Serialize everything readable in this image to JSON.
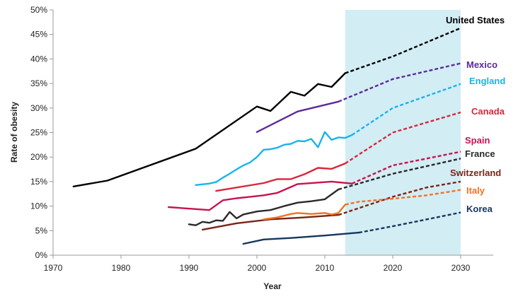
{
  "chart_data": {
    "type": "line",
    "xlabel": "Year",
    "ylabel": "Rate of obesity",
    "xlim": [
      1970,
      2035
    ],
    "ylim": [
      0,
      50
    ],
    "x_ticks": [
      1970,
      1980,
      1990,
      2000,
      2010,
      2020,
      2030
    ],
    "y_ticks": [
      0,
      5,
      10,
      15,
      20,
      25,
      30,
      35,
      40,
      45,
      50
    ],
    "y_tick_labels": [
      "0%",
      "5%",
      "10%",
      "15%",
      "20%",
      "25%",
      "30%",
      "35%",
      "40%",
      "45%",
      "50%"
    ],
    "projection_region": {
      "from": 2013,
      "to": 2030,
      "color": "#d3edf4"
    },
    "grid": false,
    "series": [
      {
        "name": "United States",
        "color": "#000000",
        "actual": [
          [
            1973,
            14.0
          ],
          [
            1978,
            15.2
          ],
          [
            1991,
            21.7
          ],
          [
            2000,
            30.3
          ],
          [
            2002,
            29.4
          ],
          [
            2005,
            33.3
          ],
          [
            2007,
            32.5
          ],
          [
            2009,
            34.9
          ],
          [
            2011,
            34.3
          ],
          [
            2013,
            37.1
          ]
        ],
        "projected": [
          [
            2013,
            37.1
          ],
          [
            2020,
            40.5
          ],
          [
            2030,
            46.3
          ]
        ]
      },
      {
        "name": "Mexico",
        "color": "#5b2a9d",
        "actual": [
          [
            2000,
            25.1
          ],
          [
            2006,
            29.3
          ],
          [
            2012,
            31.3
          ]
        ],
        "projected": [
          [
            2012,
            31.3
          ],
          [
            2020,
            35.9
          ],
          [
            2030,
            39.1
          ]
        ]
      },
      {
        "name": "England",
        "color": "#19b4ea",
        "actual": [
          [
            1991,
            14.3
          ],
          [
            1993,
            14.6
          ],
          [
            1994,
            14.9
          ],
          [
            1995,
            15.8
          ],
          [
            1996,
            16.6
          ],
          [
            1997,
            17.5
          ],
          [
            1998,
            18.3
          ],
          [
            1999,
            18.9
          ],
          [
            2000,
            20.0
          ],
          [
            2001,
            21.5
          ],
          [
            2002,
            21.6
          ],
          [
            2003,
            21.9
          ],
          [
            2004,
            22.5
          ],
          [
            2005,
            22.7
          ],
          [
            2006,
            23.3
          ],
          [
            2007,
            23.2
          ],
          [
            2008,
            23.7
          ],
          [
            2009,
            22.0
          ],
          [
            2010,
            25.1
          ],
          [
            2011,
            23.5
          ],
          [
            2012,
            24.0
          ],
          [
            2013,
            23.9
          ],
          [
            2014,
            24.5
          ]
        ],
        "projected": [
          [
            2014,
            24.5
          ],
          [
            2020,
            30.0
          ],
          [
            2030,
            34.9
          ]
        ]
      },
      {
        "name": "Canada",
        "color": "#d7273b",
        "actual": [
          [
            1994,
            13.1
          ],
          [
            2001,
            14.7
          ],
          [
            2003,
            15.5
          ],
          [
            2005,
            15.5
          ],
          [
            2007,
            16.5
          ],
          [
            2009,
            17.8
          ],
          [
            2011,
            17.6
          ],
          [
            2013,
            18.7
          ]
        ],
        "projected": [
          [
            2013,
            18.7
          ],
          [
            2020,
            25.0
          ],
          [
            2030,
            29.1
          ]
        ]
      },
      {
        "name": "Spain",
        "color": "#c8124f",
        "actual": [
          [
            1987,
            9.8
          ],
          [
            1993,
            9.2
          ],
          [
            1995,
            11.2
          ],
          [
            1997,
            11.6
          ],
          [
            1999,
            11.9
          ],
          [
            2001,
            12.2
          ],
          [
            2003,
            12.7
          ],
          [
            2006,
            14.5
          ],
          [
            2009,
            14.8
          ],
          [
            2011,
            15.0
          ],
          [
            2014,
            14.6
          ]
        ],
        "projected": [
          [
            2014,
            14.6
          ],
          [
            2020,
            18.3
          ],
          [
            2030,
            21.1
          ]
        ]
      },
      {
        "name": "France",
        "color": "#2a2a2a",
        "actual": [
          [
            1990,
            6.3
          ],
          [
            1991,
            6.1
          ],
          [
            1992,
            6.8
          ],
          [
            1993,
            6.6
          ],
          [
            1994,
            7.1
          ],
          [
            1995,
            7.0
          ],
          [
            1996,
            8.8
          ],
          [
            1997,
            7.5
          ],
          [
            1998,
            8.3
          ],
          [
            2000,
            8.9
          ],
          [
            2002,
            9.2
          ],
          [
            2004,
            10.0
          ],
          [
            2006,
            10.7
          ],
          [
            2008,
            11.0
          ],
          [
            2010,
            11.4
          ],
          [
            2012,
            13.4
          ]
        ],
        "projected": [
          [
            2012,
            13.4
          ],
          [
            2020,
            16.6
          ],
          [
            2030,
            19.7
          ]
        ]
      },
      {
        "name": "Switzerland",
        "color": "#7b2418",
        "actual": [
          [
            1992,
            5.2
          ],
          [
            1997,
            6.5
          ],
          [
            2002,
            7.3
          ],
          [
            2007,
            7.7
          ],
          [
            2012,
            8.2
          ]
        ],
        "projected": [
          [
            2012,
            8.2
          ],
          [
            2020,
            11.9
          ],
          [
            2025,
            13.8
          ],
          [
            2030,
            15.0
          ]
        ]
      },
      {
        "name": "Italy",
        "color": "#f07322",
        "actual": [
          [
            2001,
            7.3
          ],
          [
            2003,
            7.7
          ],
          [
            2005,
            8.4
          ],
          [
            2006,
            8.6
          ],
          [
            2008,
            8.4
          ],
          [
            2009,
            8.5
          ],
          [
            2010,
            8.6
          ],
          [
            2011,
            8.3
          ],
          [
            2012,
            8.6
          ],
          [
            2013,
            10.3
          ]
        ],
        "projected": [
          [
            2013,
            10.3
          ],
          [
            2015,
            10.9
          ],
          [
            2020,
            11.5
          ],
          [
            2025,
            12.2
          ],
          [
            2030,
            13.3
          ]
        ]
      },
      {
        "name": "Korea",
        "color": "#16365f",
        "actual": [
          [
            1998,
            2.3
          ],
          [
            2001,
            3.2
          ],
          [
            2005,
            3.5
          ],
          [
            2010,
            4.0
          ],
          [
            2015,
            4.6
          ]
        ],
        "projected": [
          [
            2015,
            4.6
          ],
          [
            2020,
            5.9
          ],
          [
            2030,
            8.7
          ]
        ]
      }
    ]
  }
}
